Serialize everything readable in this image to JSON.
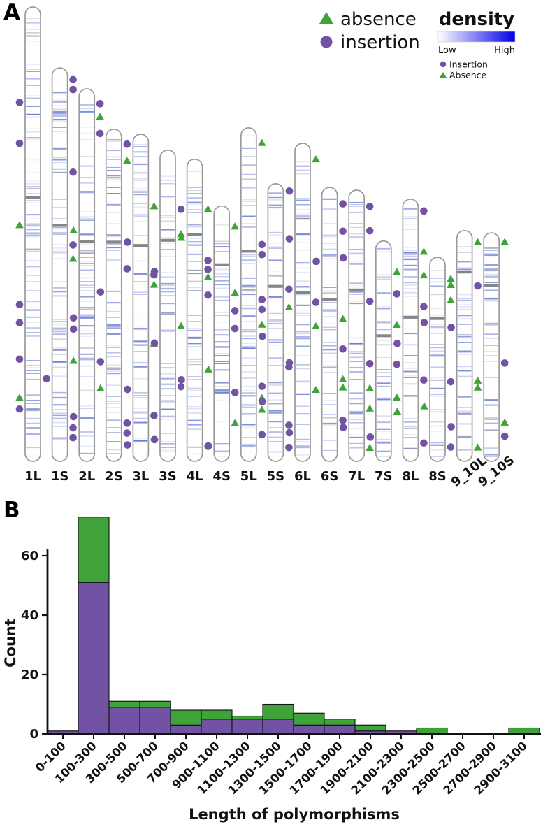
{
  "panelA": {
    "label": "A",
    "legend": {
      "absence_label": "absence",
      "insertion_label": "insertion",
      "density_title": "density",
      "low_label": "Low",
      "high_label": "High",
      "small_insertion_label": "Insertion",
      "small_absence_label": "Absence"
    }
  },
  "panelB": {
    "label": "B"
  },
  "colors": {
    "insertion": "#7152A3",
    "absence": "#3FA33A",
    "density_low": "#FFFFFF",
    "density_high": "#0000E8",
    "chrom_outline": "#999999",
    "band": "#5C6FD0",
    "band_gray": "#8A8FA0",
    "centromere": "#7F7F7F",
    "axis": "#111111"
  },
  "chart_data": [
    {
      "type": "ideogram",
      "title": "",
      "legend": [
        {
          "label": "absence",
          "marker": "triangle",
          "color": "#3FA33A"
        },
        {
          "label": "insertion",
          "marker": "circle",
          "color": "#7152A3"
        },
        {
          "label": "density",
          "scale": [
            "Low",
            "High"
          ]
        }
      ],
      "chromosomes": [
        {
          "name": "1L",
          "h": 1.0,
          "cen": 0.42,
          "markers": [
            [
              "i",
              0.21,
              "l"
            ],
            [
              "i",
              0.3,
              "l"
            ],
            [
              "a",
              0.48,
              "l"
            ],
            [
              "i",
              0.655,
              "l"
            ],
            [
              "i",
              0.695,
              "l"
            ],
            [
              "i",
              0.775,
              "l"
            ],
            [
              "a",
              0.86,
              "l"
            ],
            [
              "i",
              0.885,
              "l"
            ]
          ]
        },
        {
          "name": "1S",
          "h": 0.866,
          "cen": 0.4,
          "markers": [
            [
              "i",
              0.03,
              "r"
            ],
            [
              "i",
              0.055,
              "r"
            ],
            [
              "i",
              0.265,
              "r"
            ],
            [
              "i",
              0.45,
              "r"
            ],
            [
              "a",
              0.485,
              "r"
            ],
            [
              "i",
              0.79,
              "l"
            ],
            [
              "i",
              0.915,
              "r"
            ],
            [
              "i",
              0.94,
              "r"
            ]
          ]
        },
        {
          "name": "2L",
          "h": 0.82,
          "cen": 0.41,
          "markers": [
            [
              "i",
              0.04,
              "r"
            ],
            [
              "a",
              0.075,
              "r"
            ],
            [
              "i",
              0.12,
              "r"
            ],
            [
              "a",
              0.38,
              "l"
            ],
            [
              "i",
              0.615,
              "l"
            ],
            [
              "i",
              0.645,
              "l"
            ],
            [
              "a",
              0.73,
              "l"
            ],
            [
              "i",
              0.88,
              "l"
            ]
          ]
        },
        {
          "name": "2S",
          "h": 0.731,
          "cen": 0.34,
          "markers": [
            [
              "i",
              0.045,
              "r"
            ],
            [
              "a",
              0.095,
              "r"
            ],
            [
              "i",
              0.42,
              "r"
            ],
            [
              "i",
              0.49,
              "l"
            ],
            [
              "i",
              0.7,
              "l"
            ],
            [
              "a",
              0.78,
              "l"
            ],
            [
              "i",
              0.885,
              "r"
            ],
            [
              "i",
              0.915,
              "r"
            ]
          ]
        },
        {
          "name": "3L",
          "h": 0.72,
          "cen": 0.34,
          "markers": [
            [
              "a",
              0.22,
              "r"
            ],
            [
              "i",
              0.33,
              "l"
            ],
            [
              "i",
              0.43,
              "r"
            ],
            [
              "a",
              0.46,
              "r"
            ],
            [
              "a",
              0.64,
              "r"
            ],
            [
              "i",
              0.78,
              "l"
            ],
            [
              "i",
              0.86,
              "r"
            ],
            [
              "i",
              0.95,
              "l"
            ]
          ]
        },
        {
          "name": "3S",
          "h": 0.685,
          "cen": 0.29,
          "markers": [
            [
              "i",
              0.19,
              "r"
            ],
            [
              "a",
              0.27,
              "r"
            ],
            [
              "i",
              0.39,
              "l"
            ],
            [
              "a",
              0.565,
              "r"
            ],
            [
              "i",
              0.62,
              "l"
            ],
            [
              "i",
              0.76,
              "r"
            ],
            [
              "i",
              0.93,
              "l"
            ]
          ]
        },
        {
          "name": "4L",
          "h": 0.665,
          "cen": 0.25,
          "markers": [
            [
              "a",
              0.165,
              "r"
            ],
            [
              "a",
              0.26,
              "l"
            ],
            [
              "i",
              0.335,
              "r"
            ],
            [
              "i",
              0.365,
              "r"
            ],
            [
              "a",
              0.39,
              "r"
            ],
            [
              "i",
              0.45,
              "r"
            ],
            [
              "i",
              0.73,
              "l"
            ],
            [
              "i",
              0.95,
              "r"
            ]
          ]
        },
        {
          "name": "4S",
          "h": 0.562,
          "cen": 0.23,
          "markers": [
            [
              "a",
              0.08,
              "r"
            ],
            [
              "a",
              0.34,
              "r"
            ],
            [
              "i",
              0.41,
              "r"
            ],
            [
              "i",
              0.48,
              "r"
            ],
            [
              "a",
              0.64,
              "l"
            ],
            [
              "i",
              0.73,
              "r"
            ],
            [
              "a",
              0.85,
              "r"
            ],
            [
              "i",
              0.94,
              "l"
            ]
          ]
        },
        {
          "name": "5L",
          "h": 0.734,
          "cen": 0.37,
          "markers": [
            [
              "a",
              0.045,
              "r"
            ],
            [
              "i",
              0.35,
              "r"
            ],
            [
              "i",
              0.38,
              "r"
            ],
            [
              "i",
              0.515,
              "r"
            ],
            [
              "i",
              0.545,
              "r"
            ],
            [
              "a",
              0.59,
              "r"
            ],
            [
              "i",
              0.775,
              "r"
            ],
            [
              "a",
              0.81,
              "r"
            ],
            [
              "a",
              0.845,
              "r"
            ],
            [
              "i",
              0.92,
              "r"
            ]
          ]
        },
        {
          "name": "5S",
          "h": 0.611,
          "cen": 0.37,
          "markers": [
            [
              "i",
              0.38,
              "r"
            ],
            [
              "a",
              0.445,
              "r"
            ],
            [
              "i",
              0.55,
              "l"
            ],
            [
              "i",
              0.66,
              "r"
            ],
            [
              "i",
              0.785,
              "l"
            ],
            [
              "i",
              0.87,
              "r"
            ],
            [
              "i",
              0.95,
              "r"
            ]
          ]
        },
        {
          "name": "6L",
          "h": 0.7,
          "cen": 0.47,
          "markers": [
            [
              "a",
              0.05,
              "r"
            ],
            [
              "i",
              0.15,
              "l"
            ],
            [
              "i",
              0.3,
              "l"
            ],
            [
              "i",
              0.5,
              "r"
            ],
            [
              "a",
              0.575,
              "r"
            ],
            [
              "i",
              0.69,
              "l"
            ],
            [
              "a",
              0.775,
              "r"
            ],
            [
              "i",
              0.91,
              "l"
            ]
          ]
        },
        {
          "name": "6S",
          "h": 0.603,
          "cen": 0.41,
          "markers": [
            [
              "i",
              0.06,
              "r"
            ],
            [
              "i",
              0.16,
              "r"
            ],
            [
              "i",
              0.27,
              "l"
            ],
            [
              "a",
              0.48,
              "r"
            ],
            [
              "i",
              0.59,
              "r"
            ],
            [
              "a",
              0.7,
              "r"
            ],
            [
              "a",
              0.73,
              "r"
            ],
            [
              "i",
              0.85,
              "r"
            ]
          ]
        },
        {
          "name": "7L",
          "h": 0.597,
          "cen": 0.37,
          "markers": [
            [
              "i",
              0.06,
              "r"
            ],
            [
              "i",
              0.15,
              "r"
            ],
            [
              "i",
              0.25,
              "l"
            ],
            [
              "i",
              0.41,
              "r"
            ],
            [
              "i",
              0.64,
              "r"
            ],
            [
              "a",
              0.73,
              "r"
            ],
            [
              "a",
              0.805,
              "r"
            ],
            [
              "i",
              0.875,
              "l"
            ],
            [
              "a",
              0.95,
              "r"
            ]
          ]
        },
        {
          "name": "7S",
          "h": 0.485,
          "cen": 0.43,
          "markers": [
            [
              "a",
              0.14,
              "r"
            ],
            [
              "i",
              0.24,
              "r"
            ],
            [
              "a",
              0.38,
              "r"
            ],
            [
              "i",
              0.56,
              "r"
            ],
            [
              "a",
              0.71,
              "r"
            ],
            [
              "i",
              0.89,
              "l"
            ]
          ]
        },
        {
          "name": "8L",
          "h": 0.577,
          "cen": 0.45,
          "markers": [
            [
              "i",
              0.045,
              "r"
            ],
            [
              "a",
              0.2,
              "r"
            ],
            [
              "a",
              0.29,
              "r"
            ],
            [
              "i",
              0.41,
              "r"
            ],
            [
              "i",
              0.55,
              "l"
            ],
            [
              "i",
              0.69,
              "r"
            ],
            [
              "a",
              0.81,
              "l"
            ],
            [
              "i",
              0.93,
              "r"
            ]
          ]
        },
        {
          "name": "8S",
          "h": 0.449,
          "cen": 0.3,
          "markers": [
            [
              "a",
              0.105,
              "r"
            ],
            [
              "a",
              0.135,
              "r"
            ],
            [
              "a",
              0.21,
              "r"
            ],
            [
              "i",
              0.32,
              "l"
            ],
            [
              "i",
              0.61,
              "r"
            ],
            [
              "a",
              0.73,
              "l"
            ],
            [
              "i",
              0.93,
              "r"
            ]
          ]
        },
        {
          "name": "9_10L",
          "h": 0.508,
          "cen": 0.18,
          "markers": [
            [
              "a",
              0.05,
              "r"
            ],
            [
              "i",
              0.24,
              "r"
            ],
            [
              "i",
              0.42,
              "l"
            ],
            [
              "a",
              0.65,
              "r"
            ],
            [
              "a",
              0.68,
              "r"
            ],
            [
              "i",
              0.85,
              "l"
            ],
            [
              "a",
              0.94,
              "r"
            ]
          ]
        },
        {
          "name": "9_10S",
          "h": 0.503,
          "cen": 0.23,
          "markers": [
            [
              "a",
              0.04,
              "r"
            ],
            [
              "i",
              0.57,
              "r"
            ],
            [
              "a",
              0.83,
              "r"
            ],
            [
              "i",
              0.89,
              "r"
            ]
          ]
        }
      ]
    },
    {
      "type": "bar",
      "stacked": true,
      "title": "",
      "xlabel": "Length of polymorphisms",
      "ylabel": "Count",
      "categories": [
        "0-100",
        "100-300",
        "300-500",
        "500-700",
        "700-900",
        "900-1100",
        "1100-1300",
        "1300-1500",
        "1500-1700",
        "1700-1900",
        "1900-2100",
        "2100-2300",
        "2300-2500",
        "2500-2700",
        "2700-2900",
        "2900-3100"
      ],
      "series": [
        {
          "name": "insertion",
          "color": "#7152A3",
          "values": [
            1,
            51,
            9,
            9,
            3,
            5,
            5,
            5,
            3,
            3,
            1,
            1,
            0,
            0,
            0,
            0
          ]
        },
        {
          "name": "absence",
          "color": "#3FA33A",
          "values": [
            0,
            22,
            2,
            2,
            5,
            3,
            1,
            5,
            4,
            2,
            2,
            0,
            2,
            0,
            0,
            2
          ]
        }
      ],
      "yticks": [
        0,
        20,
        40,
        60
      ],
      "ylim": [
        0,
        74
      ],
      "grid": false,
      "legend_position": "none"
    }
  ]
}
